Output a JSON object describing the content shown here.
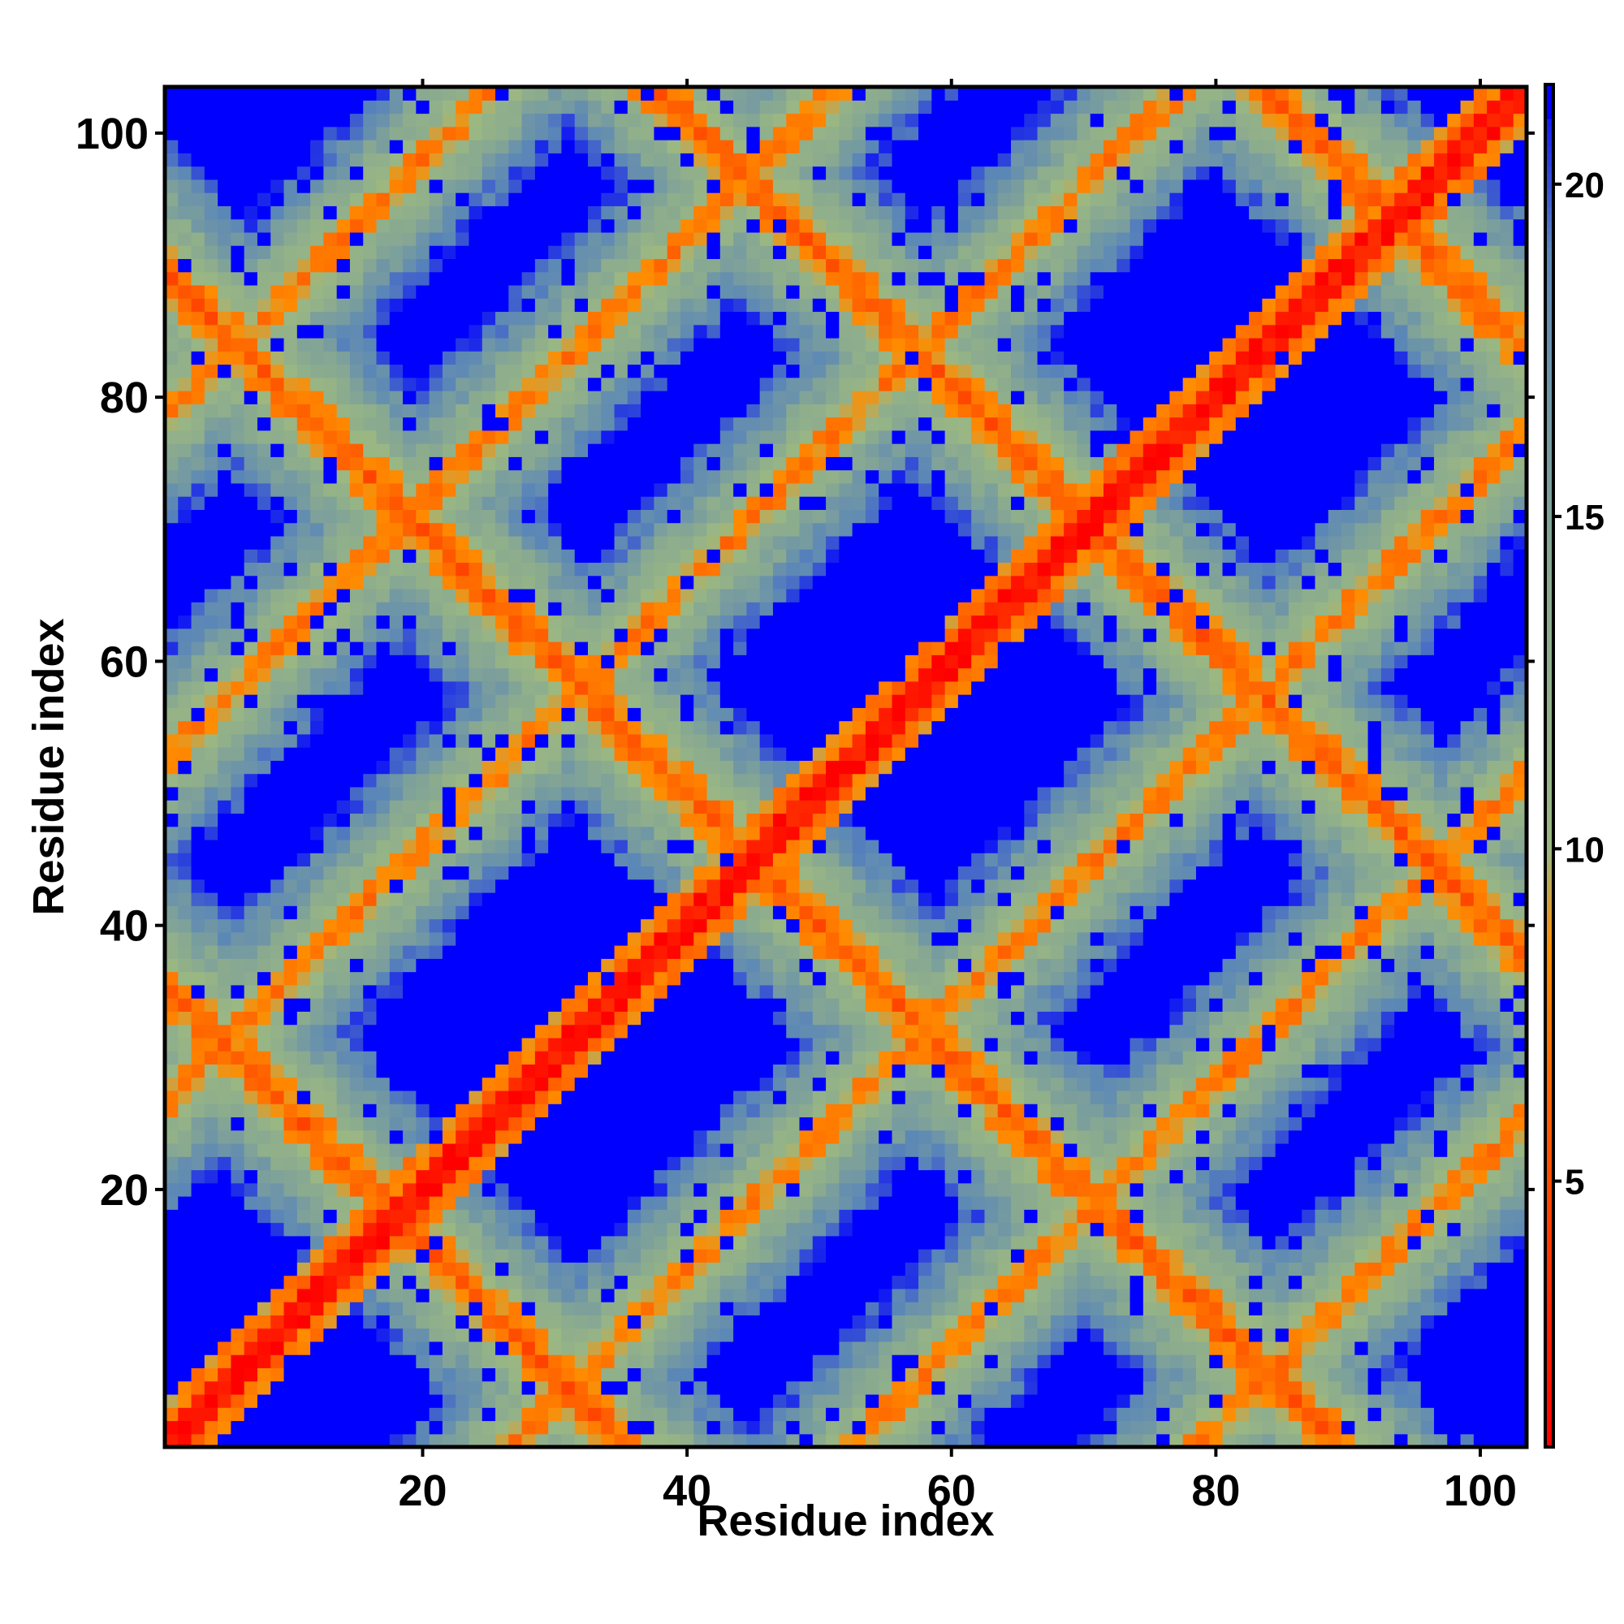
{
  "chart_data": {
    "type": "heatmap",
    "title": "",
    "xlabel": "Residue index",
    "ylabel": "Residue index",
    "n_residues": 103,
    "xlim": [
      1,
      103
    ],
    "ylim": [
      1,
      103
    ],
    "x_ticks": [
      20,
      40,
      60,
      80,
      100
    ],
    "y_ticks": [
      20,
      40,
      60,
      80,
      100
    ],
    "colorbar": {
      "range": [
        1,
        21.5
      ],
      "ticks": [
        5,
        10,
        15,
        20
      ],
      "stops": [
        {
          "value": 1,
          "color": "#ff0000"
        },
        {
          "value": 8.5,
          "color": "#ff8c00"
        },
        {
          "value": 10,
          "color": "#9bb882"
        },
        {
          "value": 14,
          "color": "#8aaa90"
        },
        {
          "value": 19,
          "color": "#5a86b8"
        },
        {
          "value": 21.5,
          "color": "#0000ff"
        }
      ],
      "cap_color": "#0000ff",
      "cap_threshold": 21
    },
    "description_of_structure": {
      "symmetric": true,
      "diagonal_contact": [
        1,
        103
      ],
      "antidiagonal_sheet_pairs": [
        [
          1,
          34
        ],
        [
          33,
          57
        ],
        [
          56,
          85
        ],
        [
          84,
          103
        ]
      ],
      "strand_length_approx": 26
    }
  }
}
